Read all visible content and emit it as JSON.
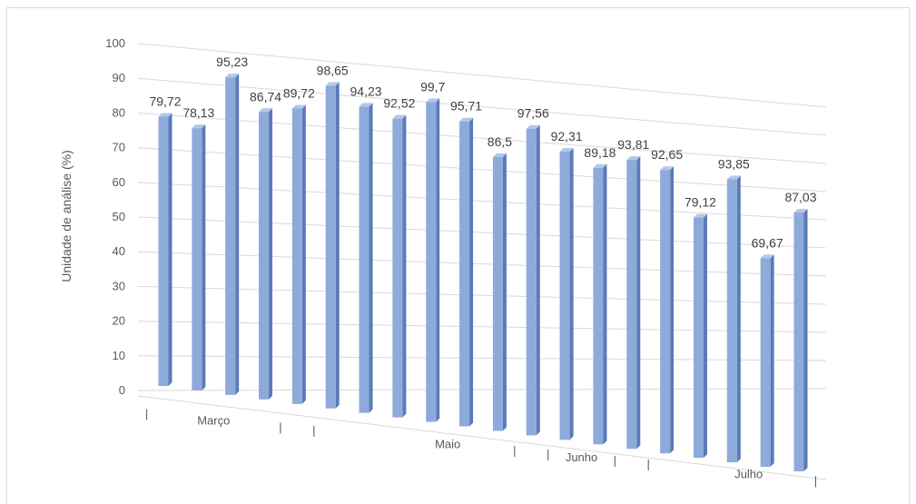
{
  "chart_data": {
    "type": "bar",
    "ylabel": "Unidade de análise (%)",
    "ylim": [
      0,
      100
    ],
    "yticks": [
      0,
      10,
      20,
      30,
      40,
      50,
      60,
      70,
      80,
      90,
      100
    ],
    "grid": true,
    "values": [
      79.72,
      78.13,
      95.23,
      86.74,
      89.72,
      98.65,
      94.23,
      92.52,
      99.7,
      95.71,
      86.5,
      97.56,
      92.31,
      89.18,
      93.81,
      92.65,
      79.12,
      93.85,
      69.67,
      87.03
    ],
    "data_labels": [
      "79,72",
      "78,13",
      "95,23",
      "86,74",
      "89,72",
      "98,65",
      "94,23",
      "92,52",
      "99,7",
      "95,71",
      "86,5",
      "97,56",
      "92,31",
      "89,18",
      "93,81",
      "92,65",
      "79,12",
      "93,85",
      "69,67",
      "87,03"
    ],
    "category_labels": [
      {
        "text": "|",
        "at": 0
      },
      {
        "text": "Março",
        "at": 2
      },
      {
        "text": "|",
        "at": 4
      },
      {
        "text": "|",
        "at": 5
      },
      {
        "text": "Maio",
        "at": 9
      },
      {
        "text": "|",
        "at": 11
      },
      {
        "text": "|",
        "at": 12
      },
      {
        "text": "Junho",
        "at": 13
      },
      {
        "text": "|",
        "at": 14
      },
      {
        "text": "|",
        "at": 15
      },
      {
        "text": "Julho",
        "at": 18
      },
      {
        "text": "|",
        "at": 20
      }
    ],
    "colors": {
      "bar_front": "#8eaadb",
      "bar_side": "#5a7bb8",
      "bar_top": "#b4c7e7",
      "grid": "#d9d9d9"
    }
  }
}
